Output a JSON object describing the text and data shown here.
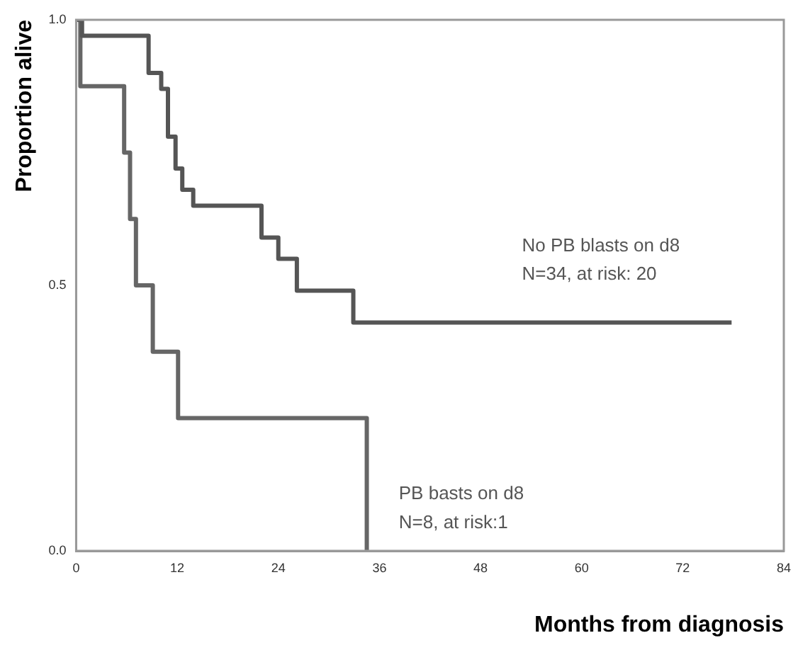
{
  "chart_data": {
    "type": "step",
    "xlabel": "Months from diagnosis",
    "ylabel": "Proportion alive",
    "xlim": [
      0,
      84
    ],
    "xticks": [
      0,
      12,
      24,
      36,
      48,
      60,
      72,
      84
    ],
    "ylim": [
      0,
      1
    ],
    "yticks": [
      {
        "value": 0,
        "label": "0.0"
      },
      {
        "value": 0.5,
        "label": "0.5"
      },
      {
        "value": 1,
        "label": "1.0"
      }
    ],
    "grid": false,
    "legend": false,
    "series": [
      {
        "color": "#555555",
        "x": [
          0,
          0.7,
          8.6,
          10.1,
          10.9,
          11.8,
          12.6,
          13.9,
          22,
          24,
          26.2,
          32.9,
          77.8
        ],
        "values": [
          1,
          0.97,
          0.9,
          0.87,
          0.78,
          0.72,
          0.68,
          0.65,
          0.59,
          0.55,
          0.49,
          0.43,
          0.43
        ]
      },
      {
        "color": "#666666",
        "x": [
          0,
          0.5,
          5.7,
          6.4,
          7.1,
          9.1,
          12.1,
          34.5
        ],
        "values": [
          1,
          0.875,
          0.75,
          0.625,
          0.5,
          0.375,
          0.25,
          0
        ]
      }
    ],
    "annotations": [
      "No PB blasts on d8",
      "N=34, at risk: 20",
      "PB basts on d8",
      "N=8, at risk:1"
    ]
  }
}
